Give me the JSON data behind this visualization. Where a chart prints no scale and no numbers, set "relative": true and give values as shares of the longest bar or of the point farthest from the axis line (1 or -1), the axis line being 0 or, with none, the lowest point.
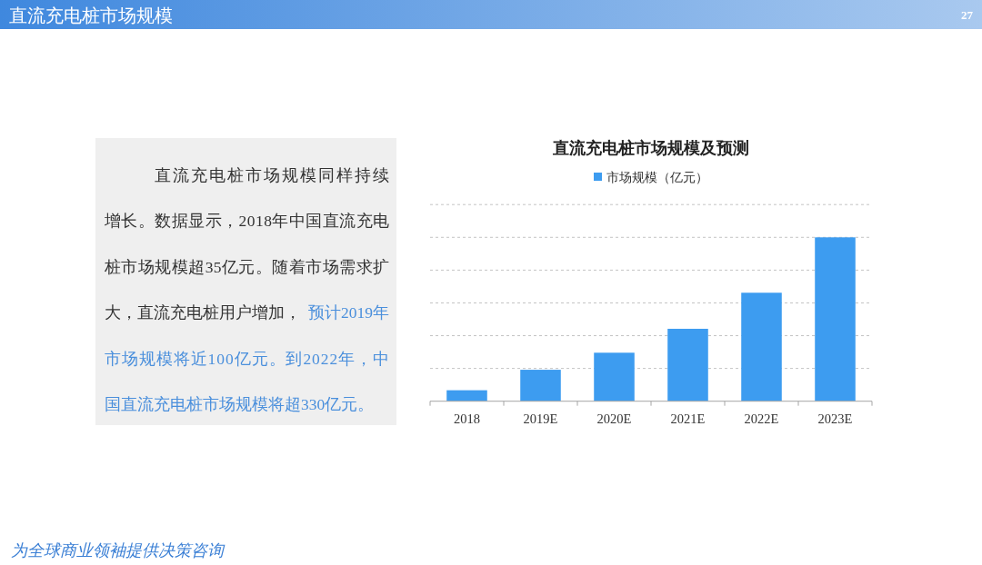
{
  "chart_data": {
    "type": "bar",
    "title": "直流充电桩市场规模及预测",
    "categories": [
      "2018",
      "2019E",
      "2020E",
      "2021E",
      "2022E",
      "2023E"
    ],
    "series": [
      {
        "name": "市场规模（亿元）",
        "color": "#3d9cf0",
        "values": [
          0.067,
          0.192,
          0.296,
          0.442,
          0.662,
          1
        ]
      }
    ],
    "relative": true,
    "grid": "y",
    "legend": "top",
    "annotations": [
      "直流充电桩市场规模",
      "27",
      "直流充电桩市场规模同样持续",
      "增长。数据显示，2018年中国直流充电",
      "桩市场规模超35亿元。随着市场需求扩",
      "大，直流充电桩用户增加，",
      "预计2019年",
      "市场规模将近100亿元。到2022年，中",
      "国直流充电桩市场规模将超330亿元。",
      "为全球商业领袖提供决策咨询"
    ]
  }
}
